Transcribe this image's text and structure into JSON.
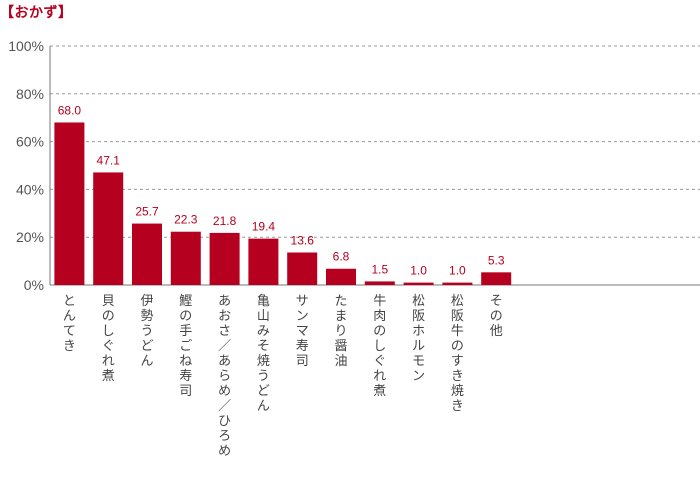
{
  "chart_data": {
    "type": "bar",
    "title": "【おかず】",
    "categories": [
      "とんてき",
      "貝のしぐれ煮",
      "伊勢うどん",
      "鰹の手ごね寿司",
      "あおさ／あらめ／ひろめ",
      "亀山みそ焼うどん",
      "サンマ寿司",
      "たまり醤油",
      "牛肉のしぐれ煮",
      "松阪ホルモン",
      "松阪牛のすき焼き",
      "その他"
    ],
    "values": [
      68.0,
      47.1,
      25.7,
      22.3,
      21.8,
      19.4,
      13.6,
      6.8,
      1.5,
      1.0,
      1.0,
      5.3
    ],
    "value_labels": [
      "68.0",
      "47.1",
      "25.7",
      "22.3",
      "21.8",
      "19.4",
      "13.6",
      "6.8",
      "1.5",
      "1.0",
      "1.0",
      "5.3"
    ],
    "ylim": [
      0,
      100
    ],
    "yticks": [
      0,
      20,
      40,
      60,
      80,
      100
    ],
    "ytick_labels": [
      "0%",
      "20%",
      "40%",
      "60%",
      "80%",
      "100%"
    ],
    "bar_color": "#b5001f",
    "grid": true
  }
}
